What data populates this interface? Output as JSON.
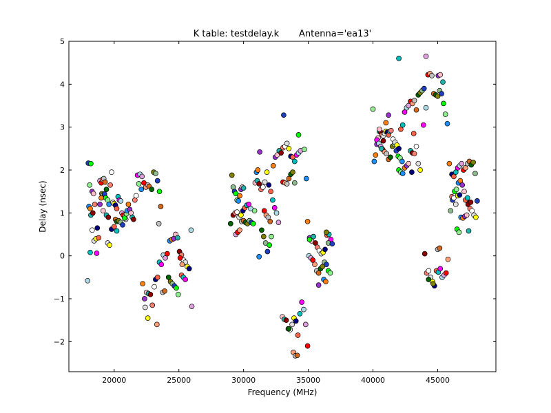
{
  "chart_data": {
    "type": "scatter",
    "title": "K table: testdelay.k       Antenna='ea13'",
    "xlabel": "Frequency (MHz)",
    "ylabel": "Delay (nsec)",
    "xlim": [
      16500,
      49500
    ],
    "ylim": [
      -2.7,
      5
    ],
    "xticks": [
      20000,
      25000,
      30000,
      35000,
      40000,
      45000
    ],
    "xtick_labels": [
      "20000",
      "25000",
      "30000",
      "35000",
      "40000",
      "45000"
    ],
    "yticks": [
      -2,
      -1,
      0,
      1,
      2,
      3,
      4,
      5
    ],
    "ytick_labels": [
      "−2",
      "−1",
      "0",
      "1",
      "2",
      "3",
      "4",
      "5"
    ],
    "grid": false,
    "legend": "none",
    "marker": "circle",
    "marker_edge_color": "#000000",
    "palette": [
      "#1f3fbf",
      "#00bfbf",
      "#ff7f0e",
      "#ff0000",
      "#8b0000",
      "#006400",
      "#ffff00",
      "#00ff00",
      "#ff00ff",
      "#9932cc",
      "#ffa07a",
      "#fa8072",
      "#808000",
      "#000080",
      "#90ee90",
      "#add8e6",
      "#ffc0cb",
      "#c0c0c0",
      "#ffffff",
      "#8fbc8f",
      "#ff6347",
      "#1e90ff",
      "#dda0dd",
      "#20b2aa",
      "#d2691e",
      "#e0e0e0"
    ],
    "points": [
      [
        18000,
        2.16
      ],
      [
        18200,
        2.15
      ],
      [
        18100,
        1.65
      ],
      [
        18050,
        1.15
      ],
      [
        18150,
        1.1
      ],
      [
        18300,
        1.5
      ],
      [
        18400,
        1.45
      ],
      [
        18200,
        0.95
      ],
      [
        18350,
        1.0
      ],
      [
        18500,
        1.2
      ],
      [
        18300,
        0.6
      ],
      [
        18450,
        0.35
      ],
      [
        18600,
        0.4
      ],
      [
        18700,
        0.65
      ],
      [
        18800,
        0.42
      ],
      [
        18150,
        0.08
      ],
      [
        18650,
        0.06
      ],
      [
        17950,
        -0.58
      ],
      [
        18900,
        1.75
      ],
      [
        19000,
        1.7
      ],
      [
        19100,
        1.78
      ],
      [
        19200,
        1.8
      ],
      [
        19300,
        1.72
      ],
      [
        19400,
        1.55
      ],
      [
        19050,
        1.45
      ],
      [
        19150,
        1.42
      ],
      [
        19250,
        1.44
      ],
      [
        19350,
        1.35
      ],
      [
        19500,
        1.3
      ],
      [
        19600,
        1.2
      ],
      [
        19000,
        1.35
      ],
      [
        18900,
        1.2
      ],
      [
        19150,
        1.05
      ],
      [
        19400,
        0.95
      ],
      [
        19550,
        0.9
      ],
      [
        19700,
        1.65
      ],
      [
        19800,
        1.95
      ],
      [
        19900,
        1.25
      ],
      [
        20000,
        1.22
      ],
      [
        20100,
        1.18
      ],
      [
        20200,
        1.1
      ],
      [
        20300,
        1.38
      ],
      [
        20400,
        1.3
      ],
      [
        20500,
        1.28
      ],
      [
        20600,
        1.0
      ],
      [
        20700,
        0.95
      ],
      [
        20800,
        0.92
      ],
      [
        20900,
        0.85
      ],
      [
        20100,
        0.85
      ],
      [
        20200,
        0.8
      ],
      [
        20350,
        0.82
      ],
      [
        20500,
        0.78
      ],
      [
        20650,
        0.72
      ],
      [
        20800,
        0.88
      ],
      [
        20950,
        0.98
      ],
      [
        21000,
        1.05
      ],
      [
        21100,
        1.2
      ],
      [
        21200,
        1.08
      ],
      [
        21300,
        1.0
      ],
      [
        21400,
        0.9
      ],
      [
        21500,
        0.85
      ],
      [
        21600,
        1.3
      ],
      [
        21700,
        1.4
      ],
      [
        19500,
        0.3
      ],
      [
        19650,
        0.25
      ],
      [
        19800,
        0.62
      ],
      [
        20000,
        0.68
      ],
      [
        20200,
        0.58
      ],
      [
        21800,
        1.88
      ],
      [
        22000,
        1.9
      ],
      [
        22150,
        1.85
      ],
      [
        22300,
        1.7
      ],
      [
        22450,
        1.6
      ],
      [
        22600,
        1.65
      ],
      [
        22700,
        1.62
      ],
      [
        22900,
        1.55
      ],
      [
        23050,
        1.95
      ],
      [
        23200,
        1.92
      ],
      [
        23350,
        1.75
      ],
      [
        23500,
        1.5
      ],
      [
        21900,
        1.68
      ],
      [
        22100,
        1.55
      ],
      [
        22200,
        -0.65
      ],
      [
        22350,
        -1.0
      ],
      [
        22500,
        -0.85
      ],
      [
        22650,
        -0.88
      ],
      [
        22800,
        -0.9
      ],
      [
        22950,
        -1.15
      ],
      [
        23100,
        -0.72
      ],
      [
        22400,
        -1.2
      ],
      [
        22600,
        -1.45
      ],
      [
        23200,
        -0.55
      ],
      [
        23350,
        -0.5
      ],
      [
        23500,
        -0.15
      ],
      [
        23650,
        -0.2
      ],
      [
        23800,
        0.02
      ],
      [
        23950,
        -0.05
      ],
      [
        24100,
        0.05
      ],
      [
        23300,
        -1.6
      ],
      [
        23450,
        0.75
      ],
      [
        23600,
        1.15
      ],
      [
        24200,
        -0.5
      ],
      [
        24350,
        -0.6
      ],
      [
        24500,
        -0.65
      ],
      [
        24650,
        -0.7
      ],
      [
        24800,
        -0.75
      ],
      [
        24950,
        -0.9
      ],
      [
        24300,
        0.35
      ],
      [
        24450,
        0.38
      ],
      [
        24600,
        0.4
      ],
      [
        24750,
        0.5
      ],
      [
        24900,
        0.42
      ],
      [
        25050,
        0.1
      ],
      [
        25200,
        0.02
      ],
      [
        25350,
        -0.1
      ],
      [
        25500,
        -0.15
      ],
      [
        25650,
        -0.25
      ],
      [
        25800,
        -0.3
      ],
      [
        25200,
        -0.45
      ],
      [
        25350,
        -0.5
      ],
      [
        25500,
        -0.55
      ],
      [
        25950,
        0.6
      ],
      [
        26000,
        -1.18
      ],
      [
        25100,
        -0.05
      ],
      [
        25250,
        -0.2
      ],
      [
        23750,
        -0.85
      ],
      [
        23900,
        -0.82
      ],
      [
        29000,
        0.75
      ],
      [
        29100,
        1.88
      ],
      [
        29200,
        1.6
      ],
      [
        29300,
        1.5
      ],
      [
        29400,
        1.45
      ],
      [
        29500,
        1.3
      ],
      [
        29600,
        1.28
      ],
      [
        29700,
        1.4
      ],
      [
        29800,
        1.55
      ],
      [
        29900,
        1.6
      ],
      [
        30000,
        1.58
      ],
      [
        29200,
        0.95
      ],
      [
        29350,
        1.0
      ],
      [
        29500,
        1.02
      ],
      [
        29650,
        0.9
      ],
      [
        29800,
        0.95
      ],
      [
        29950,
        1.05
      ],
      [
        30100,
        1.12
      ],
      [
        30250,
        1.18
      ],
      [
        30400,
        1.2
      ],
      [
        30550,
        1.1
      ],
      [
        29400,
        0.5
      ],
      [
        29550,
        0.55
      ],
      [
        29700,
        0.6
      ],
      [
        29850,
        0.8
      ],
      [
        30000,
        0.82
      ],
      [
        30150,
        0.78
      ],
      [
        30300,
        0.75
      ],
      [
        30450,
        0.82
      ],
      [
        30600,
        0.78
      ],
      [
        30750,
        0.75
      ],
      [
        30850,
        1.05
      ],
      [
        31000,
        1.95
      ],
      [
        31100,
        2.0
      ],
      [
        31250,
        2.42
      ],
      [
        30900,
        1.7
      ],
      [
        31050,
        1.75
      ],
      [
        31200,
        1.68
      ],
      [
        31350,
        1.55
      ],
      [
        31500,
        1.6
      ],
      [
        31650,
        1.72
      ],
      [
        31800,
        1.95
      ],
      [
        31950,
        1.65
      ],
      [
        32100,
        1.5
      ],
      [
        32250,
        1.3
      ],
      [
        32400,
        1.12
      ],
      [
        32550,
        1.0
      ],
      [
        32700,
        0.78
      ],
      [
        31600,
        1.05
      ],
      [
        31750,
        0.95
      ],
      [
        31900,
        0.9
      ],
      [
        32050,
        0.8
      ],
      [
        31400,
        0.6
      ],
      [
        31550,
        0.45
      ],
      [
        31700,
        0.3
      ],
      [
        31850,
        0.1
      ],
      [
        32000,
        0.25
      ],
      [
        32150,
        0.45
      ],
      [
        31200,
        -0.02
      ],
      [
        32300,
        2.1
      ],
      [
        32450,
        2.3
      ],
      [
        32600,
        2.35
      ],
      [
        32750,
        2.45
      ],
      [
        32900,
        2.4
      ],
      [
        33050,
        2.52
      ],
      [
        33200,
        2.55
      ],
      [
        33350,
        2.62
      ],
      [
        33500,
        2.5
      ],
      [
        33650,
        2.32
      ],
      [
        33800,
        2.3
      ],
      [
        33950,
        2.2
      ],
      [
        34100,
        2.35
      ],
      [
        34250,
        2.4
      ],
      [
        34400,
        2.45
      ],
      [
        33050,
        1.72
      ],
      [
        33200,
        1.7
      ],
      [
        33350,
        1.68
      ],
      [
        33500,
        1.8
      ],
      [
        33650,
        1.9
      ],
      [
        33800,
        1.95
      ],
      [
        33950,
        1.7
      ],
      [
        33100,
        3.28
      ],
      [
        34250,
        2.82
      ],
      [
        34700,
        2.48
      ],
      [
        34850,
        1.8
      ],
      [
        34950,
        0.8
      ],
      [
        35100,
        0.42
      ],
      [
        35250,
        0.35
      ],
      [
        35400,
        0.45
      ],
      [
        35550,
        0.3
      ],
      [
        35700,
        0.2
      ],
      [
        35850,
        0.12
      ],
      [
        36000,
        0.05
      ],
      [
        36150,
        0.08
      ],
      [
        36300,
        0.15
      ],
      [
        36450,
        0.48
      ],
      [
        36600,
        0.5
      ],
      [
        36750,
        0.38
      ],
      [
        35050,
        0.0
      ],
      [
        35200,
        -0.05
      ],
      [
        35350,
        -0.1
      ],
      [
        35500,
        -0.2
      ],
      [
        35650,
        -0.35
      ],
      [
        35800,
        -0.4
      ],
      [
        35950,
        -0.3
      ],
      [
        36100,
        -0.25
      ],
      [
        36250,
        -0.15
      ],
      [
        36400,
        -0.2
      ],
      [
        36550,
        -0.35
      ],
      [
        36700,
        -0.4
      ],
      [
        36200,
        -0.55
      ],
      [
        36350,
        -0.6
      ],
      [
        35800,
        -0.68
      ],
      [
        33000,
        -1.42
      ],
      [
        33150,
        -1.48
      ],
      [
        33300,
        -1.5
      ],
      [
        33450,
        -1.7
      ],
      [
        33600,
        -1.72
      ],
      [
        33750,
        -1.6
      ],
      [
        33900,
        -1.45
      ],
      [
        34050,
        -1.52
      ],
      [
        34200,
        -1.85
      ],
      [
        34350,
        -1.35
      ],
      [
        34500,
        -1.08
      ],
      [
        34650,
        -1.25
      ],
      [
        34800,
        -1.6
      ],
      [
        34950,
        -2.1
      ],
      [
        33850,
        -2.25
      ],
      [
        34000,
        -2.33
      ],
      [
        34150,
        -2.32
      ],
      [
        33500,
        -1.7
      ],
      [
        36400,
        0.55
      ],
      [
        36550,
        0.3
      ],
      [
        36850,
        0.28
      ],
      [
        35100,
        0.38
      ],
      [
        40000,
        3.42
      ],
      [
        40100,
        2.2
      ],
      [
        40200,
        2.35
      ],
      [
        40300,
        2.6
      ],
      [
        40400,
        2.75
      ],
      [
        40500,
        2.9
      ],
      [
        40600,
        2.88
      ],
      [
        40700,
        2.82
      ],
      [
        40800,
        2.8
      ],
      [
        40900,
        2.85
      ],
      [
        41000,
        2.9
      ],
      [
        41100,
        2.88
      ],
      [
        41200,
        2.82
      ],
      [
        41300,
        2.9
      ],
      [
        40300,
        2.7
      ],
      [
        40450,
        2.62
      ],
      [
        40600,
        2.55
      ],
      [
        40750,
        2.48
      ],
      [
        40900,
        2.42
      ],
      [
        41050,
        2.38
      ],
      [
        41200,
        2.25
      ],
      [
        41350,
        2.3
      ],
      [
        41500,
        2.55
      ],
      [
        41650,
        2.6
      ],
      [
        41800,
        2.45
      ],
      [
        41950,
        2.32
      ],
      [
        42100,
        2.28
      ],
      [
        42250,
        2.2
      ],
      [
        41000,
        3.1
      ],
      [
        41200,
        3.28
      ],
      [
        40500,
        2.95
      ],
      [
        40650,
        2.5
      ],
      [
        40800,
        2.68
      ],
      [
        41400,
        2.92
      ],
      [
        41550,
        2.72
      ],
      [
        41700,
        2.65
      ],
      [
        41850,
        2.58
      ],
      [
        42000,
        2.5
      ],
      [
        42150,
        2.95
      ],
      [
        42300,
        3.05
      ],
      [
        42450,
        3.35
      ],
      [
        42600,
        3.45
      ],
      [
        42750,
        3.5
      ],
      [
        42900,
        3.6
      ],
      [
        43050,
        3.55
      ],
      [
        43200,
        3.62
      ],
      [
        43350,
        3.4
      ],
      [
        43500,
        3.75
      ],
      [
        43650,
        3.8
      ],
      [
        43800,
        3.85
      ],
      [
        43950,
        3.9
      ],
      [
        42000,
        2.0
      ],
      [
        42150,
        1.95
      ],
      [
        42300,
        1.92
      ],
      [
        42450,
        2.05
      ],
      [
        42600,
        2.1
      ],
      [
        42750,
        2.15
      ],
      [
        42900,
        2.45
      ],
      [
        43050,
        2.4
      ],
      [
        43200,
        2.38
      ],
      [
        43350,
        2.55
      ],
      [
        43500,
        2.15
      ],
      [
        43650,
        2.0
      ],
      [
        43000,
        1.95
      ],
      [
        43150,
        2.85
      ],
      [
        42000,
        4.6
      ],
      [
        43900,
        3.05
      ],
      [
        44100,
        3.45
      ],
      [
        44100,
        4.65
      ],
      [
        44250,
        4.22
      ],
      [
        44400,
        4.25
      ],
      [
        44550,
        4.2
      ],
      [
        44700,
        3.78
      ],
      [
        44850,
        3.75
      ],
      [
        45000,
        3.72
      ],
      [
        45150,
        3.85
      ],
      [
        45300,
        3.78
      ],
      [
        45450,
        3.55
      ],
      [
        45600,
        3.3
      ],
      [
        45750,
        3.08
      ],
      [
        45900,
        2.15
      ],
      [
        45050,
        4.2
      ],
      [
        45200,
        4.22
      ],
      [
        45400,
        4.05
      ],
      [
        44000,
        0.05
      ],
      [
        44150,
        -0.4
      ],
      [
        44300,
        -0.35
      ],
      [
        44450,
        -0.5
      ],
      [
        44600,
        -0.6
      ],
      [
        44750,
        -0.7
      ],
      [
        44900,
        -0.35
      ],
      [
        45050,
        -0.38
      ],
      [
        45200,
        -0.3
      ],
      [
        45350,
        -0.5
      ],
      [
        45500,
        -0.45
      ],
      [
        45650,
        -0.4
      ],
      [
        45800,
        -0.08
      ],
      [
        45000,
        0.15
      ],
      [
        45150,
        0.18
      ],
      [
        44300,
        -0.55
      ],
      [
        44650,
        -0.65
      ],
      [
        46000,
        1.05
      ],
      [
        46150,
        1.3
      ],
      [
        46300,
        1.5
      ],
      [
        46450,
        1.55
      ],
      [
        46600,
        1.7
      ],
      [
        46750,
        1.75
      ],
      [
        46900,
        1.65
      ],
      [
        47050,
        1.5
      ],
      [
        47200,
        1.3
      ],
      [
        47350,
        1.2
      ],
      [
        47500,
        1.1
      ],
      [
        47650,
        1.05
      ],
      [
        47800,
        0.95
      ],
      [
        47950,
        0.9
      ],
      [
        46100,
        1.9
      ],
      [
        46250,
        1.85
      ],
      [
        46400,
        1.95
      ],
      [
        46550,
        2.05
      ],
      [
        46700,
        2.1
      ],
      [
        46850,
        2.15
      ],
      [
        47000,
        2.0
      ],
      [
        47150,
        2.05
      ],
      [
        47300,
        2.15
      ],
      [
        47450,
        2.2
      ],
      [
        47600,
        2.12
      ],
      [
        47750,
        2.18
      ],
      [
        47900,
        1.92
      ],
      [
        48050,
        1.28
      ],
      [
        46500,
        0.62
      ],
      [
        46650,
        0.55
      ],
      [
        46800,
        0.9
      ],
      [
        46950,
        0.88
      ],
      [
        47100,
        0.92
      ],
      [
        47250,
        0.95
      ],
      [
        47400,
        0.58
      ],
      [
        47550,
        1.25
      ],
      [
        46100,
        1.38
      ],
      [
        46250,
        1.35
      ],
      [
        46400,
        1.2
      ],
      [
        46550,
        1.4
      ],
      [
        46700,
        1.42
      ],
      [
        47150,
        1.3
      ],
      [
        47300,
        1.35
      ]
    ]
  }
}
